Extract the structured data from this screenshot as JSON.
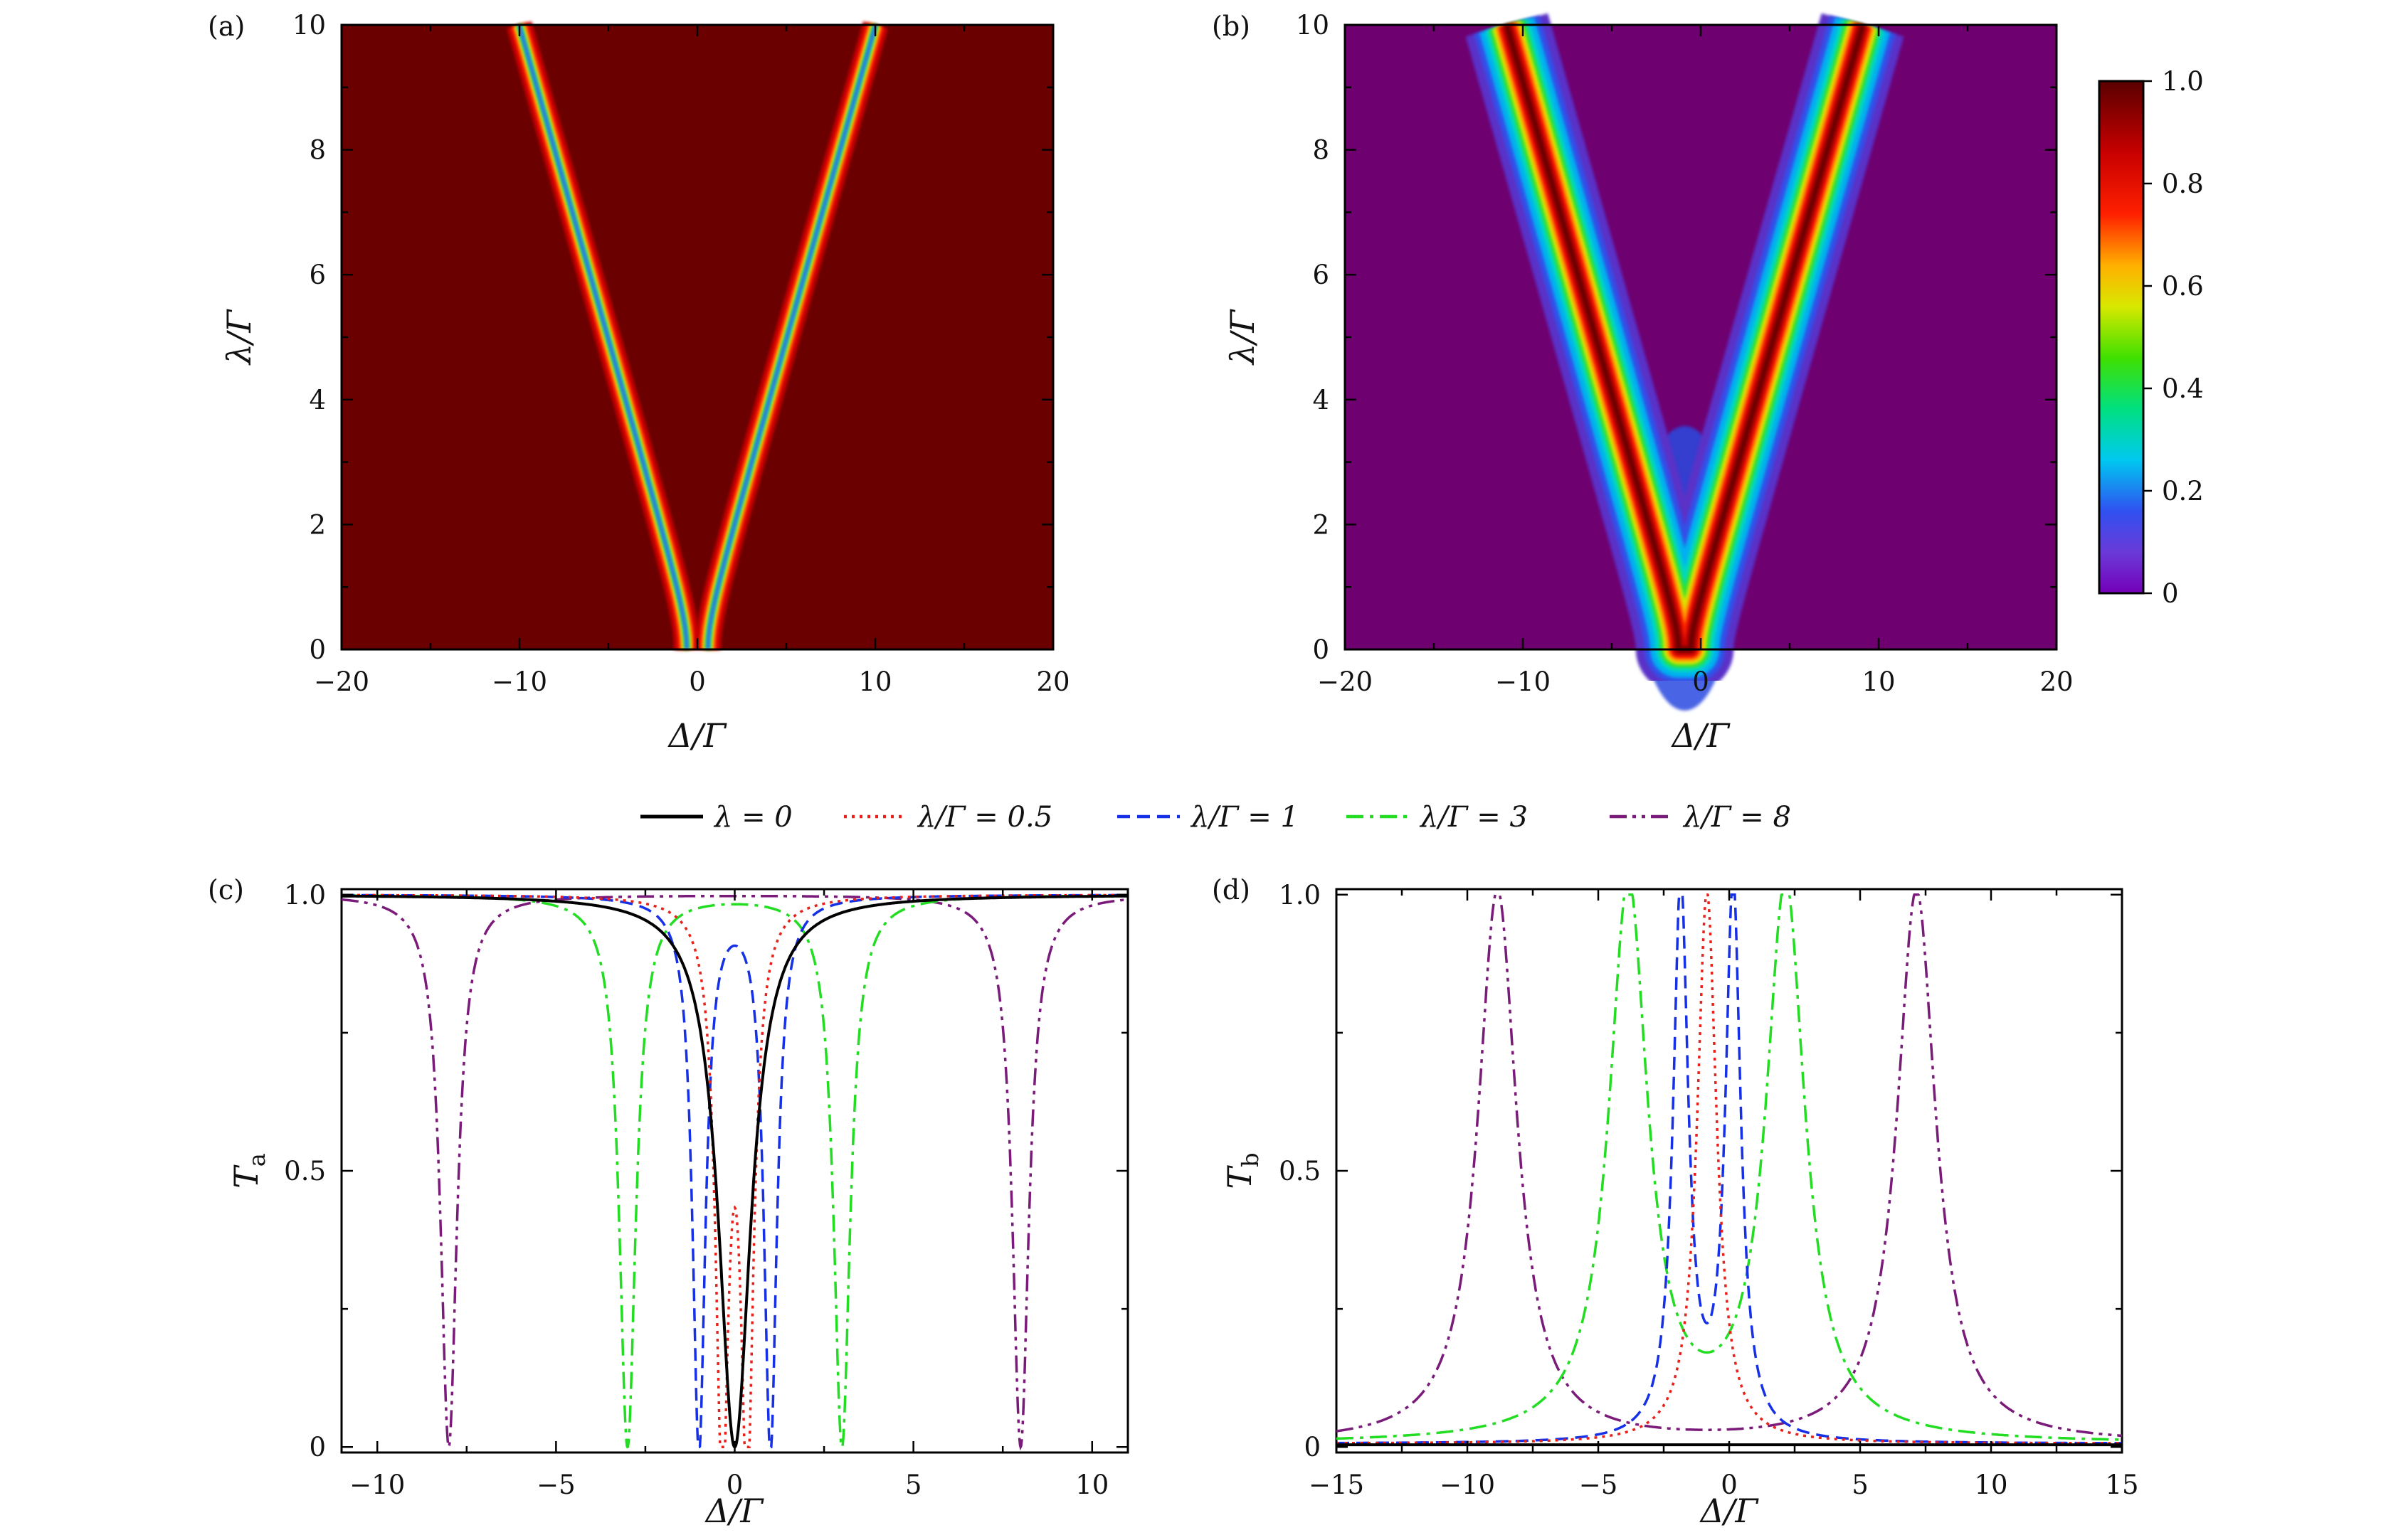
{
  "chart_data": [
    {
      "panel": "(a)",
      "type": "heatmap",
      "xlabel": "Δ/Γ",
      "ylabel": "λ/Γ",
      "xlim": [
        -20,
        20
      ],
      "ylim": [
        0,
        10
      ],
      "xticks": [
        -20,
        -10,
        0,
        10,
        20
      ],
      "yticks": [
        0,
        2,
        4,
        6,
        8,
        10
      ],
      "quantity": "T_a",
      "feature": "Two narrow transmission dips along Δ = ±λ (value ≈ 0 on the dips, ≈ 1 elsewhere)",
      "dip_lines": [
        {
          "lambda": 0,
          "delta": 0
        },
        {
          "lambda": 10,
          "delta": -10
        },
        {
          "lambda": 10,
          "delta": 10
        }
      ]
    },
    {
      "panel": "(b)",
      "type": "heatmap",
      "xlabel": "Δ/Γ",
      "ylabel": "λ/Γ",
      "xlim": [
        -20,
        20
      ],
      "ylim": [
        0,
        10
      ],
      "xticks": [
        -20,
        -10,
        0,
        10,
        20
      ],
      "yticks": [
        0,
        2,
        4,
        6,
        8,
        10
      ],
      "quantity": "T_b",
      "feature": "Two transmission peaks along Δ ≈ -1 ± λ (value ≈ 1 on the peaks, ≈ 0 elsewhere)",
      "colorbar": {
        "ticks": [
          0,
          0.2,
          0.4,
          0.6,
          0.8,
          1.0
        ],
        "tick_labels": [
          "0",
          "0.2",
          "0.4",
          "0.6",
          "0.8",
          "1.0"
        ],
        "range": [
          0,
          1
        ]
      }
    },
    {
      "panel": "(c)",
      "type": "line",
      "xlabel": "Δ/Γ",
      "ylabel": "T",
      "ylabel_sub": "a",
      "xlim": [
        -11,
        11
      ],
      "ylim": [
        -0.01,
        1.01
      ],
      "xticks": [
        -10,
        -5,
        0,
        5,
        10
      ],
      "yticks": [
        0,
        0.5,
        1.0
      ],
      "ytick_labels": [
        "0",
        "0.5",
        "1.0"
      ],
      "series": [
        {
          "name": "λ = 0",
          "lambda": 0,
          "color": "#000000",
          "style": "solid"
        },
        {
          "name": "λ/Γ = 0.5",
          "lambda": 0.5,
          "color": "#e8211b",
          "style": "dotted"
        },
        {
          "name": "λ/Γ = 1",
          "lambda": 1,
          "color": "#1530e6",
          "style": "dashed"
        },
        {
          "name": "λ/Γ = 3",
          "lambda": 3,
          "color": "#22dd22",
          "style": "dashdot"
        },
        {
          "name": "λ/Γ = 8",
          "lambda": 8,
          "color": "#7a1b7a",
          "style": "dashdotdot"
        }
      ]
    },
    {
      "panel": "(d)",
      "type": "line",
      "xlabel": "Δ/Γ",
      "ylabel": "T",
      "ylabel_sub": "b",
      "xlim": [
        -15,
        15
      ],
      "ylim": [
        -0.01,
        1.01
      ],
      "xticks": [
        -15,
        -10,
        -5,
        0,
        5,
        10,
        15
      ],
      "yticks": [
        0,
        0.5,
        1.0
      ],
      "ytick_labels": [
        "0",
        "0.5",
        "1.0"
      ],
      "series": [
        {
          "name": "λ = 0",
          "lambda": 0,
          "color": "#000000",
          "style": "solid"
        },
        {
          "name": "λ/Γ = 0.5",
          "lambda": 0.5,
          "color": "#e8211b",
          "style": "dotted"
        },
        {
          "name": "λ/Γ = 1",
          "lambda": 1,
          "color": "#1530e6",
          "style": "dashed"
        },
        {
          "name": "λ/Γ = 3",
          "lambda": 3,
          "color": "#22dd22",
          "style": "dashdot"
        },
        {
          "name": "λ/Γ = 8",
          "lambda": 8,
          "color": "#7a1b7a",
          "style": "dashdotdot"
        }
      ]
    }
  ],
  "legend": {
    "placement": "top-center between rows",
    "entries": [
      "λ = 0",
      "λ/Γ = 0.5",
      "λ/Γ = 1",
      "λ/Γ = 3",
      "λ/Γ = 8"
    ]
  }
}
